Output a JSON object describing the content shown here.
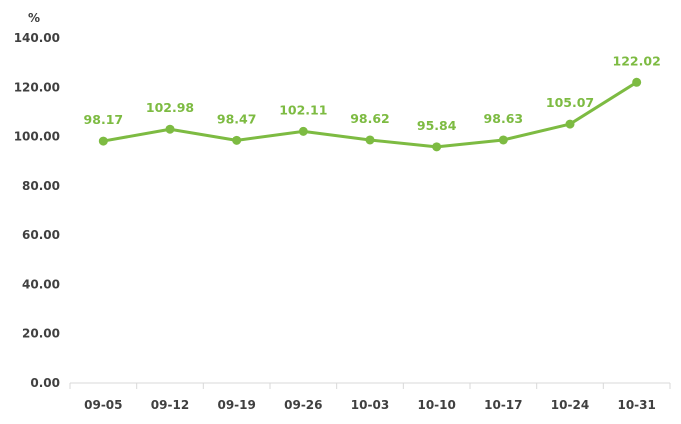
{
  "chart_data": {
    "type": "line",
    "title": "",
    "xlabel": "",
    "ylabel": "%",
    "categories": [
      "09-05",
      "09-12",
      "09-19",
      "09-26",
      "10-03",
      "10-10",
      "10-17",
      "10-24",
      "10-31"
    ],
    "series": [
      {
        "values": [
          98.17,
          102.98,
          98.47,
          102.11,
          98.62,
          95.84,
          98.63,
          105.07,
          122.02
        ],
        "labels": [
          "98.17",
          "102.98",
          "98.47",
          "102.11",
          "98.62",
          "95.84",
          "98.63",
          "105.07",
          "122.02"
        ],
        "color": "#7dbb42"
      }
    ],
    "ylim": [
      0,
      140
    ],
    "yticks": [
      "0.00",
      "20.00",
      "40.00",
      "60.00",
      "80.00",
      "100.00",
      "120.00",
      "140.00"
    ],
    "grid": false,
    "legend": "none",
    "axis_color": "#d9d9d9",
    "tick_color": "#404040"
  }
}
